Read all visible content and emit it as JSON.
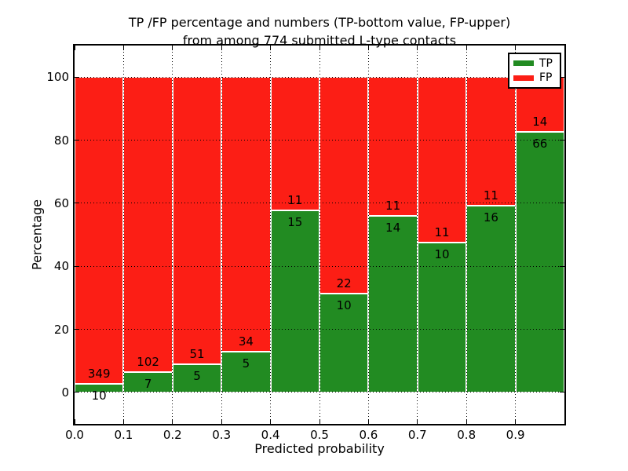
{
  "title": {
    "line1": "TP /FP percentage and numbers (TP-bottom value, FP-upper)",
    "line2": "from among 774 submitted L-type contacts"
  },
  "axes": {
    "xlabel": "Predicted probability",
    "ylabel": "Percentage"
  },
  "legend": {
    "position": "upper right",
    "entries": [
      {
        "label": "TP",
        "color": "#228b22"
      },
      {
        "label": "FP",
        "color": "#fc1e15"
      }
    ]
  },
  "chart_data": {
    "type": "bar",
    "stacked": true,
    "normalized": "percent",
    "title": "TP /FP percentage and numbers (TP-bottom value, FP-upper) from among 774 submitted L-type contacts",
    "xlabel": "Predicted probability",
    "ylabel": "Percentage",
    "total_contacts": 774,
    "bins": [
      0.0,
      0.1,
      0.2,
      0.3,
      0.4,
      0.5,
      0.6,
      0.7,
      0.8,
      0.9
    ],
    "bin_width": 0.1,
    "series": [
      {
        "name": "TP",
        "color": "#228b22",
        "counts": [
          10,
          7,
          5,
          5,
          15,
          10,
          14,
          10,
          16,
          66
        ]
      },
      {
        "name": "FP",
        "color": "#fc1e15",
        "counts": [
          349,
          102,
          51,
          34,
          11,
          22,
          11,
          11,
          11,
          14
        ]
      }
    ],
    "tp_percent": [
      2.8,
      6.4,
      8.9,
      12.8,
      57.7,
      31.3,
      56.0,
      47.6,
      59.3,
      82.5
    ],
    "xticks": [
      "0.0",
      "0.1",
      "0.2",
      "0.3",
      "0.4",
      "0.5",
      "0.6",
      "0.7",
      "0.8",
      "0.9"
    ],
    "yticks": [
      0,
      20,
      40,
      60,
      80,
      100
    ],
    "xlim": [
      0.0,
      1.0
    ],
    "ylim": [
      -10,
      110
    ],
    "grid": true,
    "legend_position": "upper right"
  }
}
